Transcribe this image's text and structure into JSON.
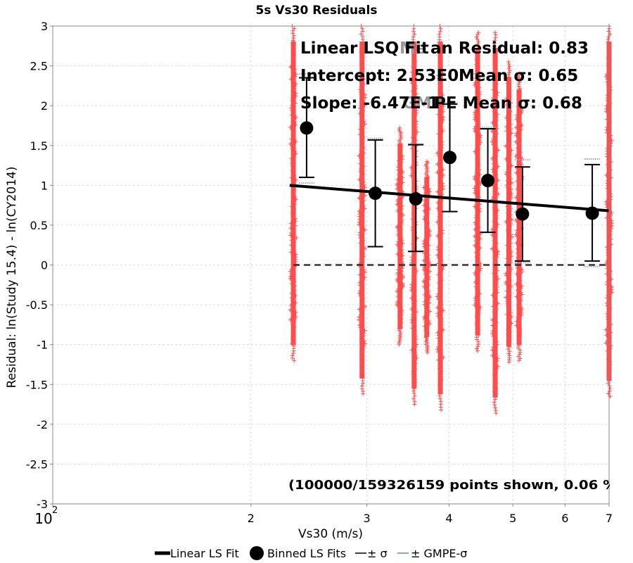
{
  "chart_data": {
    "type": "scatter",
    "title": "5s Vs30 Residuals",
    "xlabel": "Vs30 (m/s)",
    "ylabel": "Residual: ln(Study 15.4) - ln(CY2014)",
    "x_scale": "log",
    "xlim": [
      100,
      700
    ],
    "ylim": [
      -3,
      3
    ],
    "grid": true,
    "x_ticks": [
      {
        "value": 100,
        "label": "10",
        "sup": "2"
      },
      {
        "value": 200,
        "label": "2"
      },
      {
        "value": 300,
        "label": "3"
      },
      {
        "value": 400,
        "label": "4"
      },
      {
        "value": 500,
        "label": "5"
      },
      {
        "value": 600,
        "label": "6"
      },
      {
        "value": 700,
        "label": "7"
      }
    ],
    "y_ticks": [
      {
        "value": 3,
        "label": "3"
      },
      {
        "value": 2.5,
        "label": "2.5"
      },
      {
        "value": 2,
        "label": "2"
      },
      {
        "value": 1.5,
        "label": "1.5"
      },
      {
        "value": 1,
        "label": "1"
      },
      {
        "value": 0.5,
        "label": "0.5"
      },
      {
        "value": 0,
        "label": "0"
      },
      {
        "value": -0.5,
        "label": "-0.5"
      },
      {
        "value": -1,
        "label": "-1"
      },
      {
        "value": -1.5,
        "label": "-1.5"
      },
      {
        "value": -2,
        "label": "-2"
      },
      {
        "value": -2.5,
        "label": "-2.5"
      },
      {
        "value": -3,
        "label": "-3"
      }
    ],
    "scatter_columns": [
      {
        "x": 232,
        "ymin": -1.2,
        "ymax": 3.0
      },
      {
        "x": 295,
        "ymin": -1.62,
        "ymax": 3.0
      },
      {
        "x": 337,
        "ymin": -1.0,
        "ymax": 1.72
      },
      {
        "x": 354,
        "ymin": -1.75,
        "ymax": 3.0
      },
      {
        "x": 370,
        "ymin": -1.1,
        "ymax": 1.3
      },
      {
        "x": 388,
        "ymin": -1.82,
        "ymax": 3.0
      },
      {
        "x": 442,
        "ymin": -1.08,
        "ymax": 2.92
      },
      {
        "x": 470,
        "ymin": -1.86,
        "ymax": 2.92
      },
      {
        "x": 493,
        "ymin": -1.22,
        "ymax": 2.55
      },
      {
        "x": 511,
        "ymin": -1.2,
        "ymax": 2.4
      },
      {
        "x": 700,
        "ymin": -1.65,
        "ymax": 3.0
      }
    ],
    "linear_fit": {
      "x": [
        229,
        700
      ],
      "y": [
        1.0,
        0.68
      ]
    },
    "zero_line": {
      "x": [
        232,
        700
      ],
      "y": 0
    },
    "binned_fits": [
      {
        "x": 243,
        "y": 1.72,
        "sigma_lo": 1.1,
        "sigma_hi": 2.35,
        "gmpe_lo": 1.03,
        "gmpe_hi": 2.4
      },
      {
        "x": 309,
        "y": 0.9,
        "sigma_lo": 0.23,
        "sigma_hi": 1.57,
        "gmpe_lo": 0.23,
        "gmpe_hi": 1.59
      },
      {
        "x": 356,
        "y": 0.83,
        "sigma_lo": 0.17,
        "sigma_hi": 1.51,
        "gmpe_lo": 0.17,
        "gmpe_hi": 1.52
      },
      {
        "x": 401,
        "y": 1.35,
        "sigma_lo": 0.67,
        "sigma_hi": 2.02,
        "gmpe_lo": 0.67,
        "gmpe_hi": 2.04
      },
      {
        "x": 458,
        "y": 1.06,
        "sigma_lo": 0.41,
        "sigma_hi": 1.71,
        "gmpe_lo": 0.41,
        "gmpe_hi": 1.73
      },
      {
        "x": 517,
        "y": 0.64,
        "sigma_lo": 0.05,
        "sigma_hi": 1.23,
        "gmpe_lo": 0.03,
        "gmpe_hi": 1.32
      },
      {
        "x": 660,
        "y": 0.65,
        "sigma_lo": 0.05,
        "sigma_hi": 1.26,
        "gmpe_lo": -0.02,
        "gmpe_hi": 1.33
      }
    ],
    "annotations": {
      "line1_main": "Linear LSQ Fit",
      "line1_over": "an Residual: 0.83",
      "line2_main": "Intercept: 2.53E0",
      "line2_over": " Mean σ: 0.65",
      "line3_main": "Slope: -6.47E-1",
      "line3_over": "PE Mean σ: 0.68",
      "gray_overlap": "Me",
      "gray_overlap2": "GMP"
    },
    "points_note": "(100000/159326159 points shown, 0.06 %)",
    "legend": [
      {
        "label": "Linear LS Fit",
        "kind": "thick-line"
      },
      {
        "label": "Binned LS Fits",
        "kind": "dot"
      },
      {
        "label": "± σ",
        "kind": "thin-line"
      },
      {
        "label": "± GMPE-σ",
        "kind": "gray-line"
      }
    ],
    "colors": {
      "scatter": "#ff4d4d",
      "fit": "#000000",
      "gmpe": "#8ea8c8",
      "grid": "#dddddd"
    }
  }
}
